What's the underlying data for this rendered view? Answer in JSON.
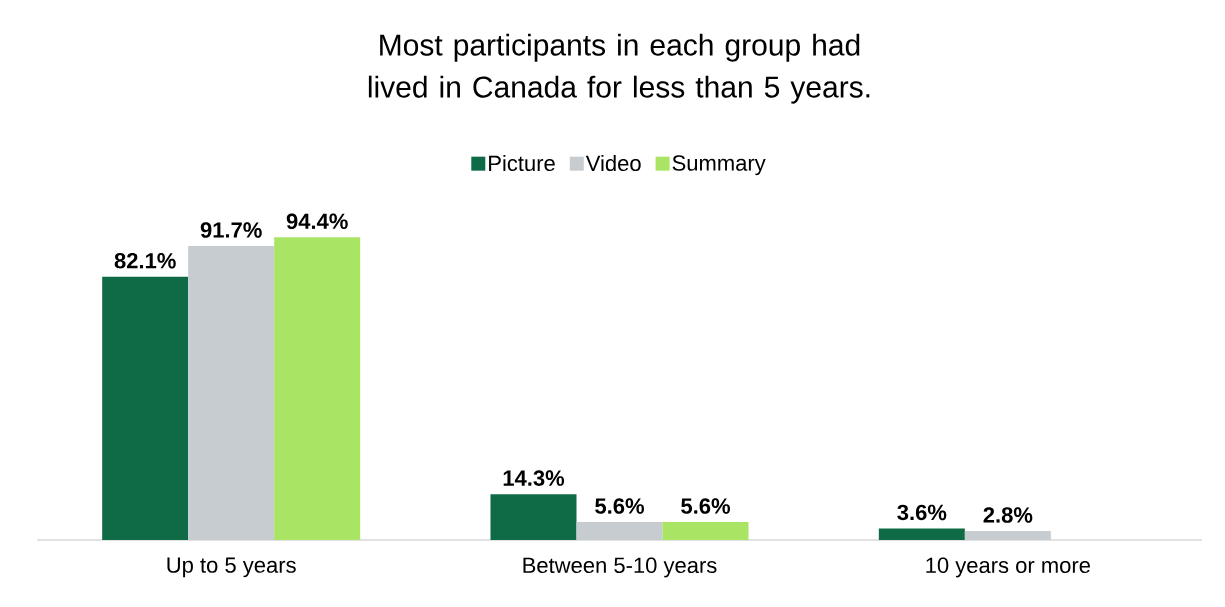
{
  "chart_data": {
    "type": "bar",
    "title": "Most participants in each group had lived in Canada for less than 5 years.",
    "categories": [
      "Up to 5 years",
      "Between 5-10 years",
      "10 years or more"
    ],
    "series": [
      {
        "name": "Picture",
        "color": "#0e6b45",
        "values": [
          82.1,
          14.3,
          3.6
        ],
        "value_labels": [
          "82.1%",
          "14.3%",
          "3.6%"
        ]
      },
      {
        "name": "Video",
        "color": "#c6ccd0",
        "values": [
          91.7,
          5.6,
          2.8
        ],
        "value_labels": [
          "91.7%",
          "5.6%",
          "2.8%"
        ]
      },
      {
        "name": "Summary",
        "color": "#a9e464",
        "values": [
          94.4,
          5.6,
          null
        ],
        "value_labels": [
          "94.4%",
          "5.6%",
          null
        ]
      }
    ],
    "legend": "top"
  }
}
